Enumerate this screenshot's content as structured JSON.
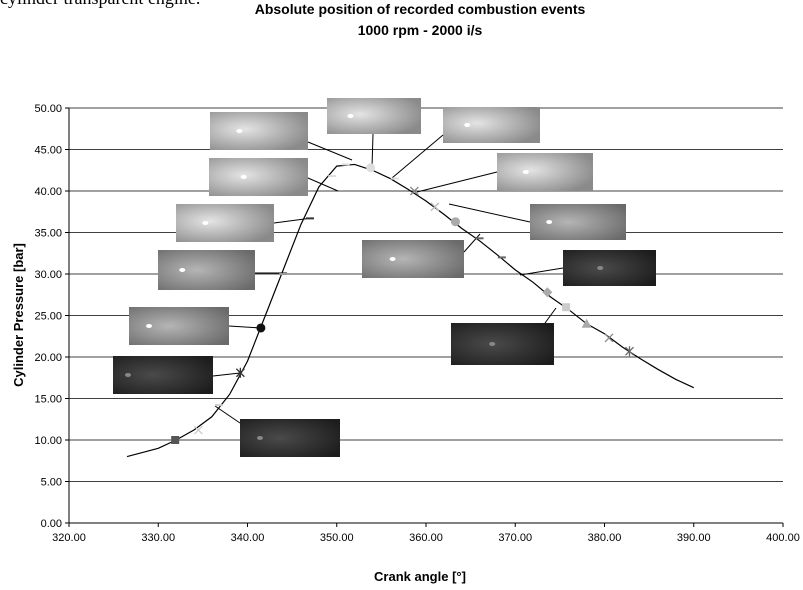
{
  "caption": "cylinder transparent engine.",
  "chart_data": {
    "type": "line",
    "title": "Absolute position of recorded combustion events",
    "subtitle": "1000 rpm -  2000 i/s",
    "x_label": "Crank angle [°]",
    "y_label": "Cylinder Pressure [bar]",
    "xlim": [
      320,
      400
    ],
    "ylim": [
      0,
      50
    ],
    "xticks": [
      {
        "value": 320,
        "label": "320.00"
      },
      {
        "value": 330,
        "label": "330.00"
      },
      {
        "value": 340,
        "label": "340.00"
      },
      {
        "value": 350,
        "label": "350.00"
      },
      {
        "value": 360,
        "label": "360.00"
      },
      {
        "value": 370,
        "label": "370.00"
      },
      {
        "value": 380,
        "label": "380.00"
      },
      {
        "value": 390,
        "label": "390.00"
      },
      {
        "value": 400,
        "label": "400.00"
      }
    ],
    "yticks": [
      {
        "value": 0,
        "label": "0.00"
      },
      {
        "value": 5,
        "label": "5.00"
      },
      {
        "value": 10,
        "label": "10.00"
      },
      {
        "value": 15,
        "label": "15.00"
      },
      {
        "value": 20,
        "label": "20.00"
      },
      {
        "value": 25,
        "label": "25.00"
      },
      {
        "value": 30,
        "label": "30.00"
      },
      {
        "value": 35,
        "label": "35.00"
      },
      {
        "value": 40,
        "label": "40.00"
      },
      {
        "value": 45,
        "label": "45.00"
      },
      {
        "value": 50,
        "label": "50.00"
      }
    ],
    "grid": true,
    "x": [
      326.5,
      330,
      332,
      334,
      336,
      338,
      340,
      342,
      344,
      346,
      348,
      350,
      352,
      354,
      356,
      358,
      360,
      362,
      364,
      366,
      368,
      370,
      372,
      374,
      376,
      378,
      380,
      382,
      384,
      386,
      388,
      390
    ],
    "series": [
      {
        "color": "#000000",
        "values": [
          8.0,
          9.0,
          10.0,
          11.2,
          12.8,
          15.5,
          19.5,
          25.0,
          30.5,
          36.0,
          40.5,
          43.0,
          43.2,
          42.5,
          41.5,
          40.2,
          38.8,
          37.2,
          35.5,
          34.0,
          32.3,
          30.5,
          29.0,
          27.2,
          25.7,
          24.0,
          22.8,
          21.2,
          19.8,
          18.5,
          17.3,
          16.3
        ]
      }
    ],
    "markers": {
      "x": [
        331.9,
        334.5,
        336.8,
        339.2,
        341.5,
        344.0,
        347.0,
        349.5,
        351.0,
        353.8,
        356.5,
        358.7,
        361.0,
        363.3,
        366.0,
        368.5,
        373.6,
        375.7,
        378.0,
        380.5,
        382.8
      ],
      "y": [
        10.0,
        11.2,
        14.2,
        18.1,
        23.5,
        30.0,
        36.7,
        41.8,
        43.2,
        42.8,
        41.5,
        40.0,
        38.1,
        36.3,
        34.3,
        32.0,
        27.8,
        26.0,
        24.0,
        22.3,
        20.7
      ],
      "shape": [
        "square",
        "x",
        "dash",
        "asterisk",
        "circle",
        "dash",
        "dash",
        "dash",
        "dash",
        "circle",
        "dash",
        "x",
        "x",
        "circle",
        "dash",
        "dash",
        "diamond",
        "square",
        "triangle",
        "x",
        "asterisk"
      ],
      "color": [
        "#555555",
        "#cccccc",
        "#cccccc",
        "#333333",
        "#111111",
        "#999999",
        "#333333",
        "#dddddd",
        "#dddddd",
        "#dddddd",
        "#dddddd",
        "#888888",
        "#bbbbbb",
        "#aaaaaa",
        "#666666",
        "#666666",
        "#aaaaaa",
        "#cccccc",
        "#aaaaaa",
        "#888888",
        "#666666"
      ]
    }
  }
}
